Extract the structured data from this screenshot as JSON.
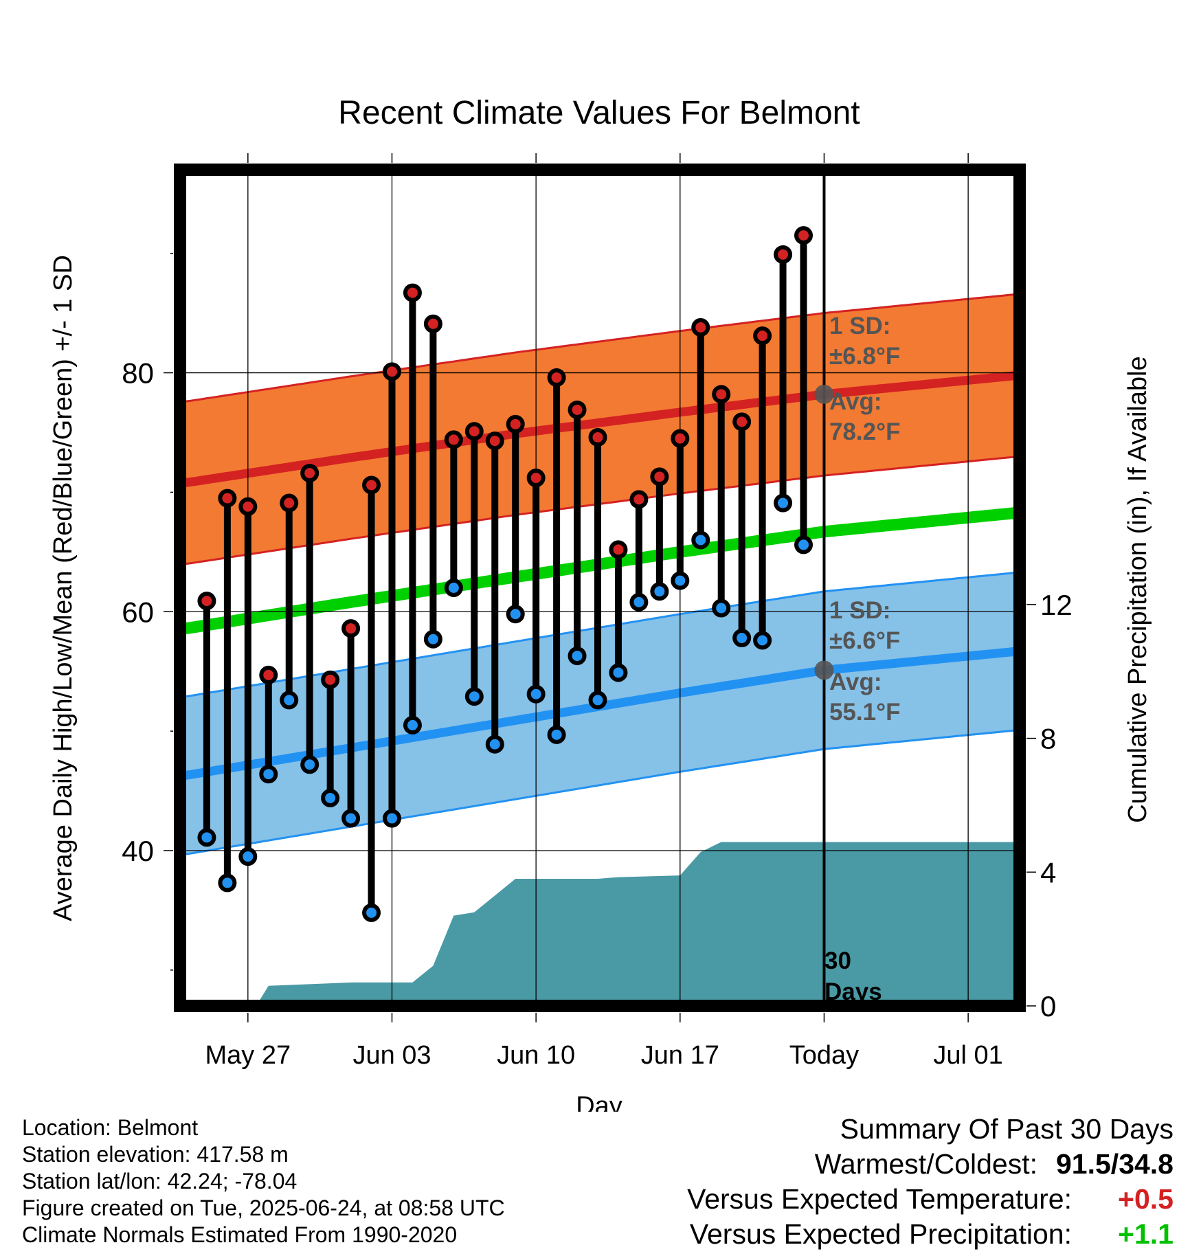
{
  "title": "Recent Climate Values For Belmont",
  "chart_data": {
    "type": "line",
    "title": "Recent Climate Values For Belmont",
    "xlabel": "Day",
    "ylabel": "Average Daily High/Low/Mean (Red/Blue/Green) +/- 1 SD",
    "y2label": "Cumulative Precipitation (in), If Available",
    "ylim": [
      27,
      97
    ],
    "y2lim": [
      0,
      25
    ],
    "y_ticks": [
      40,
      60,
      80
    ],
    "y2_ticks": [
      0,
      4,
      8,
      12
    ],
    "x_tick_labels": [
      "May 27",
      "Jun 03",
      "Jun 10",
      "Jun 17",
      "Today",
      "Jul 01"
    ],
    "x_tick_days": [
      3,
      10,
      17,
      24,
      31,
      38
    ],
    "xlim": [
      -0.3,
      40.5
    ],
    "today_day": 31,
    "today_label": "30 Days",
    "grid": true,
    "days": [
      1,
      2,
      3,
      4,
      5,
      6,
      7,
      8,
      9,
      10,
      11,
      12,
      13,
      14,
      15,
      16,
      17,
      18,
      19,
      20,
      21,
      22,
      23,
      24,
      25,
      26,
      27,
      28,
      29,
      30
    ],
    "daily_high": [
      60.9,
      69.5,
      68.8,
      54.7,
      69.1,
      71.6,
      54.3,
      58.6,
      70.6,
      80.1,
      86.7,
      84.1,
      74.4,
      75.1,
      74.3,
      75.7,
      71.2,
      79.6,
      76.9,
      74.6,
      65.2,
      69.4,
      71.3,
      74.5,
      83.8,
      78.2,
      75.9,
      83.1,
      89.9,
      91.5
    ],
    "daily_low": [
      41.1,
      37.3,
      39.5,
      46.4,
      52.6,
      47.2,
      44.4,
      42.7,
      34.8,
      42.7,
      50.5,
      57.7,
      62.0,
      52.9,
      48.9,
      59.8,
      53.1,
      49.7,
      56.3,
      52.6,
      54.9,
      60.8,
      61.7,
      62.6,
      66.0,
      60.3,
      57.8,
      57.6,
      69.1,
      65.6
    ],
    "normal_high_curve": [
      [
        0,
        70.8
      ],
      [
        8,
        72.9
      ],
      [
        16,
        74.9
      ],
      [
        24,
        76.7
      ],
      [
        31,
        78.2
      ],
      [
        40.5,
        79.8
      ]
    ],
    "normal_low_curve": [
      [
        0,
        46.3
      ],
      [
        8,
        48.6
      ],
      [
        16,
        50.9
      ],
      [
        24,
        53.2
      ],
      [
        31,
        55.1
      ],
      [
        40.5,
        56.7
      ]
    ],
    "normal_mean_curve": [
      [
        0,
        58.6
      ],
      [
        8,
        60.8
      ],
      [
        16,
        62.9
      ],
      [
        24,
        65.0
      ],
      [
        31,
        66.7
      ],
      [
        40.5,
        68.3
      ]
    ],
    "high_sd": 6.8,
    "low_sd": 6.6,
    "precip_cumulative": [
      [
        3.4,
        0.0
      ],
      [
        4.0,
        0.6
      ],
      [
        8.0,
        0.7
      ],
      [
        11.0,
        0.7
      ],
      [
        12.0,
        1.2
      ],
      [
        13.0,
        2.7
      ],
      [
        14.0,
        2.8
      ],
      [
        15.0,
        3.3
      ],
      [
        16.0,
        3.8
      ],
      [
        19.0,
        3.8
      ],
      [
        20.0,
        3.8
      ],
      [
        21.0,
        3.85
      ],
      [
        24.0,
        3.9
      ],
      [
        25.0,
        4.6
      ],
      [
        26.0,
        4.9
      ],
      [
        31.0,
        4.9
      ],
      [
        40.5,
        4.9
      ]
    ],
    "colors": {
      "high": "#d42222",
      "low": "#2292f2",
      "mean": "#00d000",
      "high_band": "#f37a32",
      "low_band": "#86c1e8",
      "precip": "#4a9aa5",
      "annotation": "#555555"
    }
  },
  "annotations": {
    "high_sd_label": "1 SD:",
    "high_sd_value": "±6.8°F",
    "high_avg_label": "Avg:",
    "high_avg_value": "78.2°F",
    "low_sd_label": "1 SD:",
    "low_sd_value": "±6.6°F",
    "low_avg_label": "Avg:",
    "low_avg_value": "55.1°F",
    "days_line1": "30",
    "days_line2": "Days"
  },
  "footer": {
    "location": "Location: Belmont",
    "elevation": "Station elevation: 417.58 m",
    "latlon": "Station lat/lon: 42.24; -78.04",
    "created": "Figure created on Tue, 2025-06-24, at 08:58 UTC",
    "normals": "Climate Normals Estimated From 1990-2020"
  },
  "summary": {
    "title": "Summary Of Past 30 Days",
    "warmest_label": "Warmest/Coldest:",
    "warmest_value": "91.5/34.8",
    "temp_label": "Versus Expected Temperature:",
    "temp_value": "+0.5",
    "temp_color": "#d42222",
    "precip_label": "Versus Expected Precipitation:",
    "precip_value": "+1.1",
    "precip_color": "#00c000"
  }
}
